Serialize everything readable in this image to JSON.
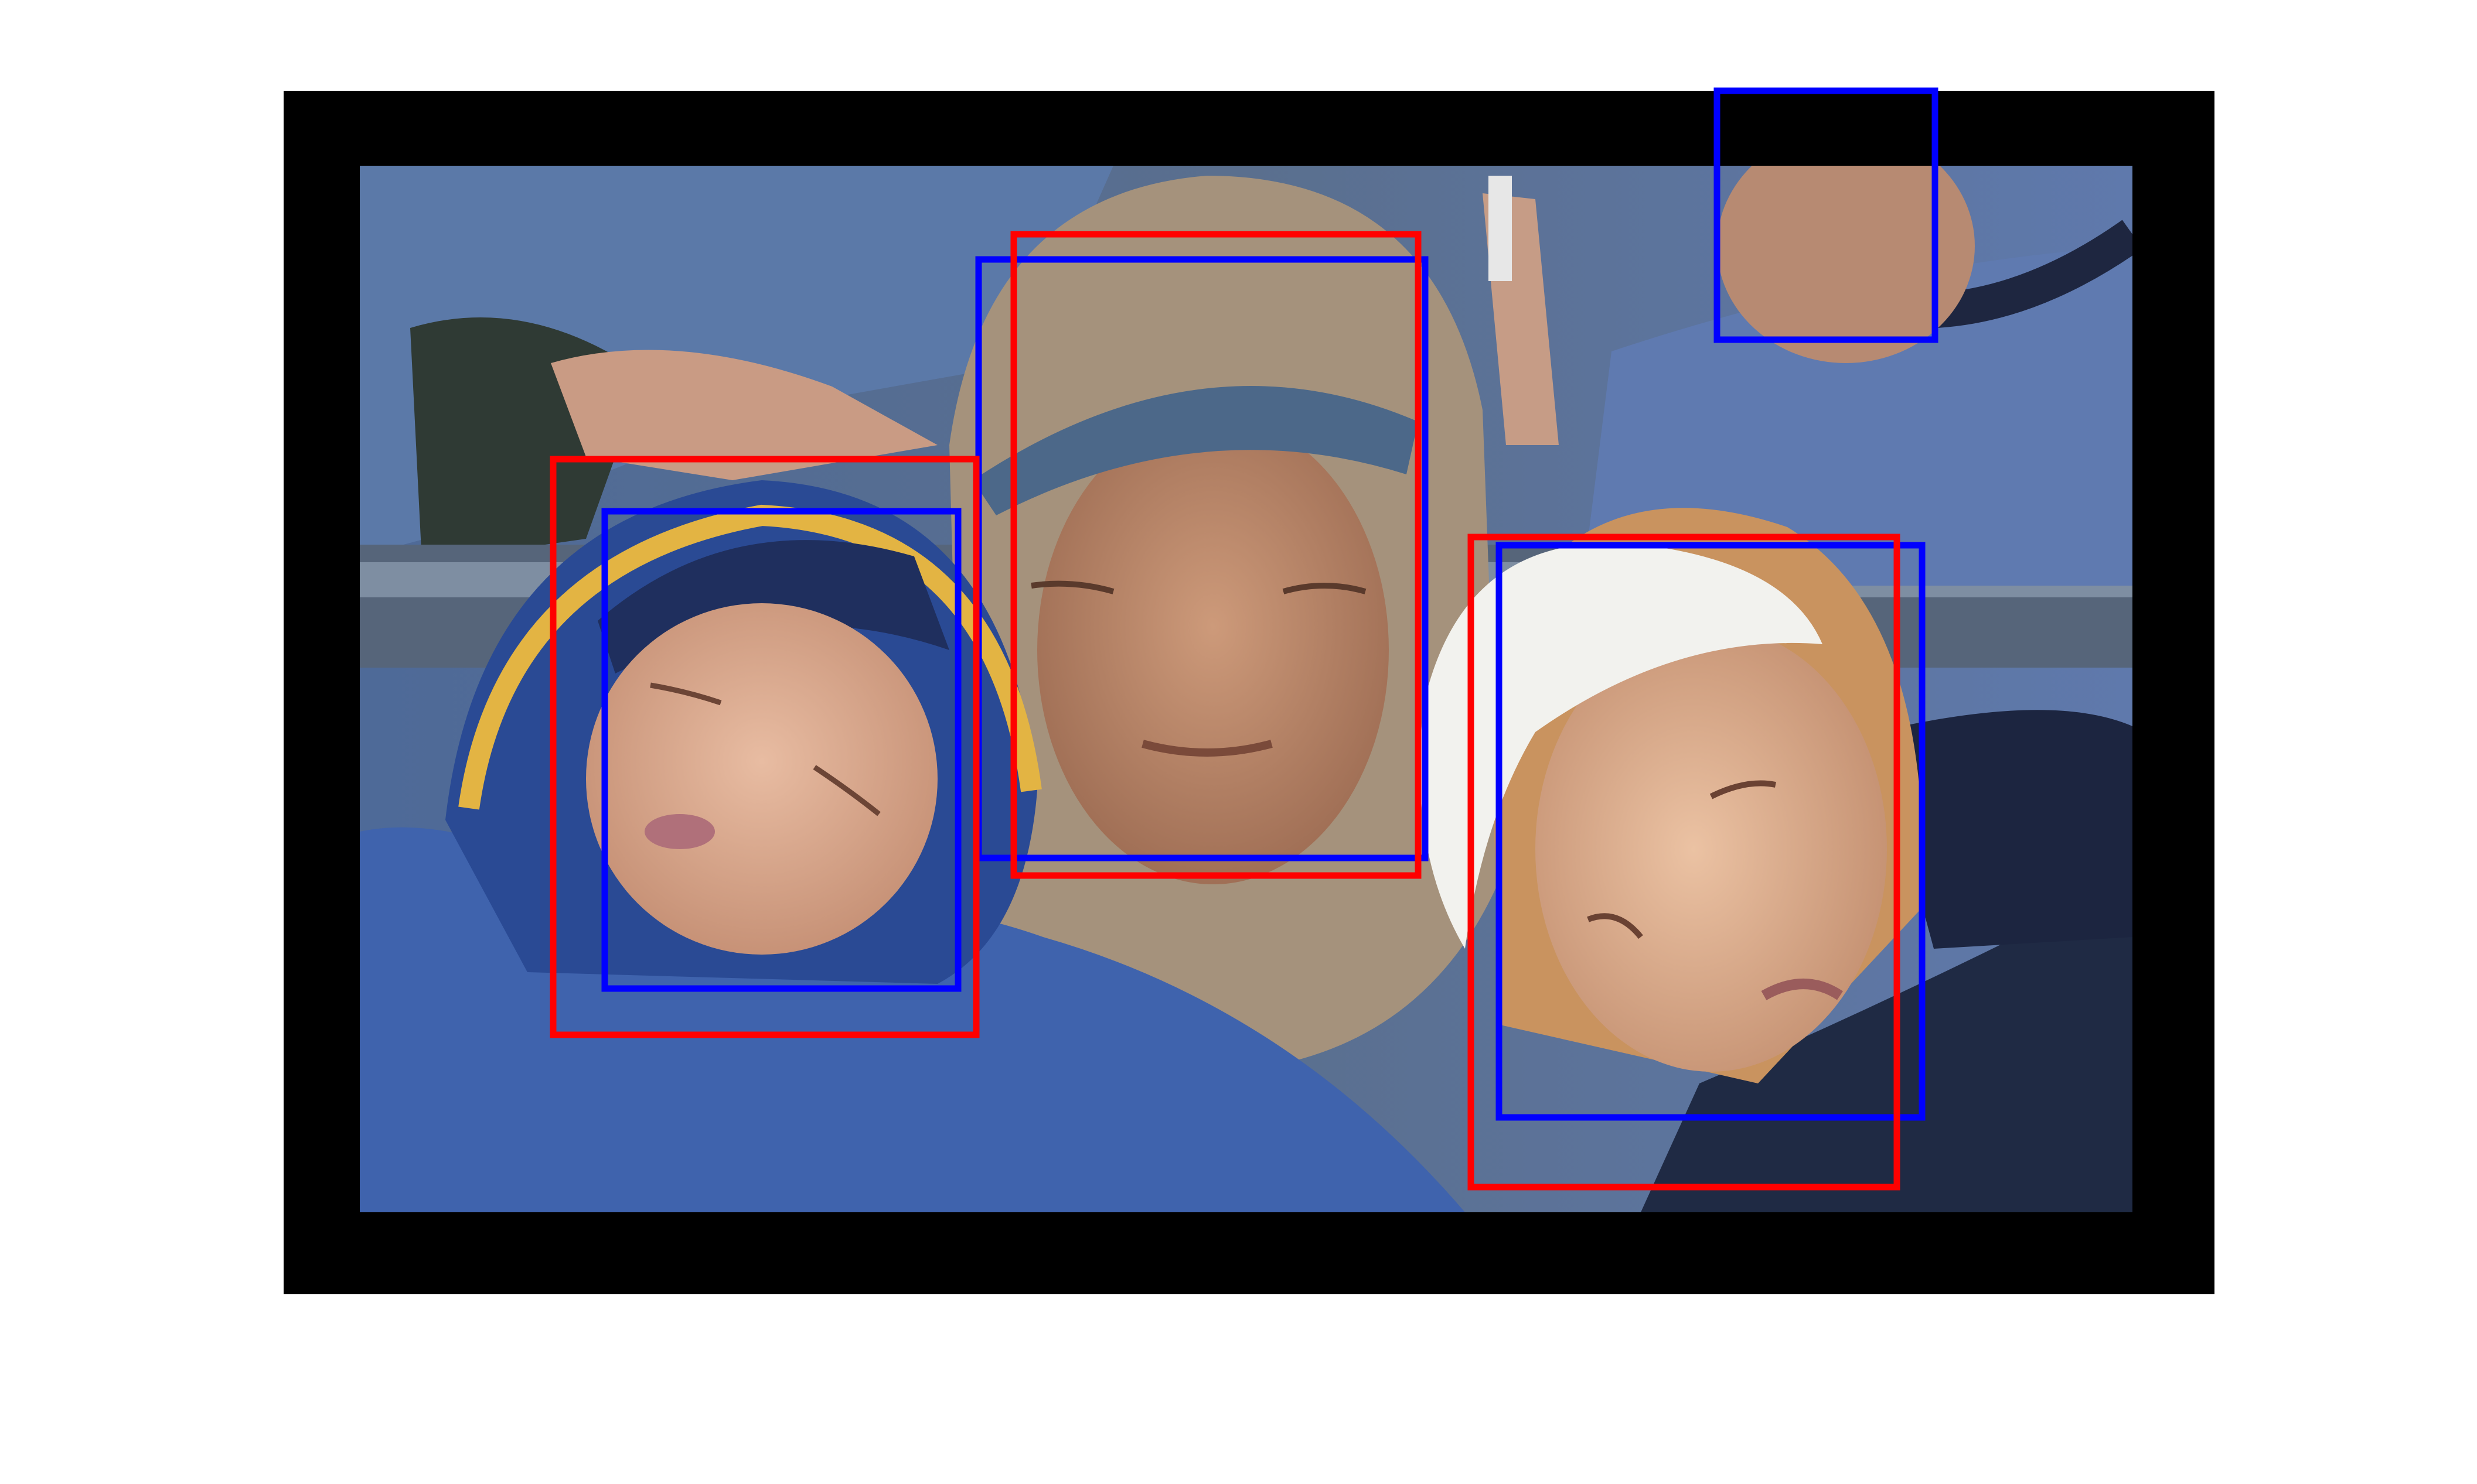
{
  "figure": {
    "background": "#ffffff",
    "padding_color": "#000000"
  },
  "photo": {
    "subjects": [
      {
        "id": "child",
        "hat_color": "#1f2f5e",
        "jacket_color": "#3f63ad",
        "skin": "#d9a98d"
      },
      {
        "id": "woman-center",
        "hood_color": "#a5927c",
        "visor_color": "#4c6889",
        "skin": "#bd8a6b"
      },
      {
        "id": "woman-right",
        "cap_color": "#f2f2ee",
        "skin": "#d7a583"
      },
      {
        "id": "man-top-right",
        "shirt_color": "#5f7ab0",
        "collar_color": "#1e2640",
        "skin": "#b78a72"
      }
    ]
  },
  "detections": {
    "colors": {
      "red": "#ff0000",
      "blue": "#0000ff"
    },
    "red_box_count": 3,
    "blue_box_count": 4
  }
}
